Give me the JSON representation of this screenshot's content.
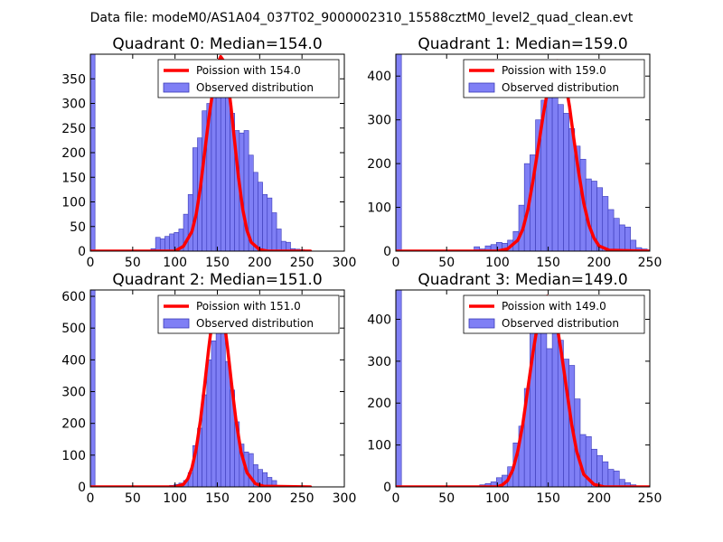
{
  "figure": {
    "suptitle": "Data file: modeM0/AS1A04_037T02_9000002310_15588cztM0_level2_quad_clean.evt"
  },
  "colors": {
    "hist_fill": "#7f7ff5",
    "hist_edge": "#3a3ab8",
    "poisson_line": "#ff0000",
    "axis": "#000000",
    "background": "#ffffff"
  },
  "chart_data": [
    {
      "type": "bar",
      "title": "Quadrant 0: Median=154.0",
      "xlim": [
        0,
        300
      ],
      "ylim": [
        0,
        400
      ],
      "xticks": [
        0,
        50,
        100,
        150,
        200,
        250,
        300
      ],
      "yticks": [
        0,
        50,
        100,
        150,
        200,
        250,
        300,
        350
      ],
      "bin_width": 5.5,
      "hist_x": [
        0,
        71.5,
        77,
        82.5,
        88,
        93.5,
        99,
        104.5,
        110,
        115.5,
        121,
        126.5,
        132,
        137.5,
        143,
        148.5,
        154,
        159.5,
        165,
        170.5,
        176,
        181.5,
        187,
        192.5,
        198,
        203.5,
        209,
        214.5,
        220,
        225.5,
        231,
        236.5,
        242,
        247.5,
        253
      ],
      "hist_values": [
        400,
        5,
        28,
        25,
        30,
        35,
        38,
        45,
        75,
        115,
        210,
        230,
        285,
        300,
        320,
        385,
        345,
        330,
        280,
        245,
        240,
        245,
        195,
        160,
        140,
        115,
        108,
        78,
        45,
        20,
        18,
        5,
        4,
        3,
        2
      ],
      "poisson_x": [
        0,
        100,
        110,
        120,
        125,
        130,
        135,
        140,
        145,
        150,
        154,
        158,
        162,
        166,
        170,
        175,
        180,
        185,
        190,
        200,
        210,
        260
      ],
      "poisson_y": [
        0,
        0,
        10,
        40,
        75,
        130,
        200,
        270,
        330,
        380,
        395,
        385,
        350,
        295,
        230,
        150,
        85,
        42,
        18,
        3,
        0,
        0
      ],
      "legend": {
        "location": "upper right",
        "line_label": "Poission with 154.0",
        "bar_label": "Observed distribution"
      }
    },
    {
      "type": "bar",
      "title": "Quadrant 1: Median=159.0",
      "xlim": [
        0,
        250
      ],
      "ylim": [
        0,
        450
      ],
      "xticks": [
        0,
        50,
        100,
        150,
        200,
        250
      ],
      "yticks": [
        0,
        100,
        200,
        300,
        400
      ],
      "bin_width": 5.5,
      "hist_x": [
        0,
        77,
        82.5,
        88,
        93.5,
        99,
        104.5,
        110,
        115.5,
        121,
        126.5,
        132,
        137.5,
        143,
        148.5,
        154,
        159.5,
        165,
        170.5,
        176,
        181.5,
        187,
        192.5,
        198,
        203.5,
        209,
        214.5,
        220,
        225.5,
        231,
        236.5,
        242
      ],
      "hist_values": [
        450,
        10,
        5,
        12,
        15,
        20,
        18,
        25,
        45,
        105,
        200,
        220,
        300,
        345,
        390,
        420,
        335,
        315,
        280,
        240,
        210,
        165,
        160,
        145,
        125,
        95,
        75,
        60,
        55,
        25,
        8,
        5
      ],
      "poisson_x": [
        0,
        100,
        110,
        120,
        125,
        130,
        135,
        140,
        145,
        150,
        155,
        159,
        163,
        167,
        171,
        175,
        180,
        185,
        190,
        195,
        200,
        210,
        250
      ],
      "poisson_y": [
        0,
        0,
        5,
        25,
        50,
        95,
        160,
        235,
        310,
        375,
        420,
        435,
        420,
        385,
        330,
        260,
        180,
        110,
        60,
        30,
        12,
        2,
        0
      ],
      "legend": {
        "location": "upper right",
        "line_label": "Poission with 159.0",
        "bar_label": "Observed distribution"
      }
    },
    {
      "type": "bar",
      "title": "Quadrant 2: Median=151.0",
      "xlim": [
        0,
        300
      ],
      "ylim": [
        0,
        620
      ],
      "xticks": [
        0,
        50,
        100,
        150,
        200,
        250,
        300
      ],
      "yticks": [
        0,
        100,
        200,
        300,
        400,
        500,
        600
      ],
      "bin_width": 5.5,
      "hist_x": [
        0,
        82.5,
        88,
        93.5,
        99,
        104.5,
        110,
        115.5,
        121,
        126.5,
        132,
        137.5,
        143,
        148.5,
        154,
        159.5,
        165,
        170.5,
        176,
        181.5,
        187,
        192.5,
        198,
        203.5,
        209,
        214.5
      ],
      "hist_values": [
        620,
        2,
        3,
        5,
        8,
        12,
        20,
        45,
        130,
        185,
        290,
        400,
        460,
        590,
        580,
        395,
        305,
        205,
        135,
        110,
        105,
        70,
        55,
        45,
        30,
        20
      ],
      "poisson_x": [
        0,
        100,
        110,
        115,
        120,
        125,
        130,
        135,
        140,
        145,
        151,
        157,
        162,
        167,
        172,
        178,
        185,
        195,
        205,
        260
      ],
      "poisson_y": [
        0,
        0,
        8,
        25,
        60,
        120,
        210,
        320,
        440,
        545,
        595,
        545,
        440,
        320,
        210,
        110,
        45,
        10,
        2,
        0
      ],
      "legend": {
        "location": "upper right",
        "line_label": "Poission with 151.0",
        "bar_label": "Observed distribution"
      }
    },
    {
      "type": "bar",
      "title": "Quadrant 3: Median=149.0",
      "xlim": [
        0,
        250
      ],
      "ylim": [
        0,
        470
      ],
      "xticks": [
        0,
        50,
        100,
        150,
        200,
        250
      ],
      "yticks": [
        0,
        100,
        200,
        300,
        400
      ],
      "bin_width": 5.5,
      "hist_x": [
        0,
        82.5,
        88,
        93.5,
        99,
        104.5,
        110,
        115.5,
        121,
        126.5,
        132,
        137.5,
        143,
        148.5,
        154,
        159.5,
        165,
        170.5,
        176,
        181.5,
        187,
        192.5,
        198,
        203.5,
        209,
        214.5,
        220,
        225.5,
        231
      ],
      "hist_values": [
        470,
        5,
        8,
        12,
        22,
        28,
        48,
        105,
        145,
        235,
        400,
        415,
        380,
        330,
        455,
        350,
        305,
        290,
        210,
        125,
        120,
        90,
        75,
        60,
        42,
        38,
        18,
        10,
        5
      ],
      "poisson_x": [
        0,
        100,
        105,
        110,
        115,
        120,
        125,
        130,
        135,
        140,
        145,
        149,
        153,
        158,
        163,
        168,
        173,
        178,
        185,
        195,
        205,
        250
      ],
      "poisson_y": [
        0,
        0,
        5,
        15,
        40,
        85,
        150,
        235,
        320,
        395,
        440,
        455,
        440,
        395,
        320,
        235,
        150,
        85,
        30,
        6,
        0,
        0
      ],
      "legend": {
        "location": "upper right",
        "line_label": "Poission with 149.0",
        "bar_label": "Observed distribution"
      }
    }
  ]
}
